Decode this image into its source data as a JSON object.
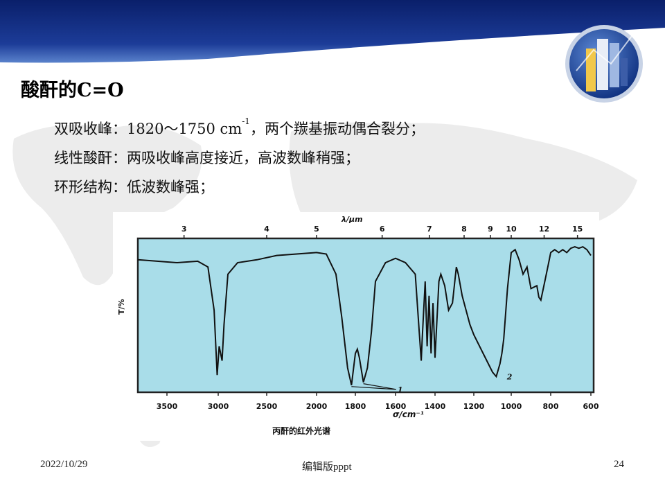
{
  "slide": {
    "title": "酸酐的C=O",
    "bullets": [
      {
        "pre": "双吸收峰：1820～1750 cm",
        "sup": "-1",
        "post": "，两个羰基振动偶合裂分；"
      },
      {
        "text": "线性酸酐：两吸收峰高度接近，高波数峰稍强；"
      },
      {
        "text": "环形结构：低波数峰强；"
      }
    ]
  },
  "chart_data": {
    "type": "line",
    "title": "丙酐的红外光谱",
    "top_axis_label": "λ/μm",
    "top_axis_ticks": [
      "3",
      "4",
      "5",
      "6",
      "7",
      "8",
      "9",
      "10",
      "12",
      "15"
    ],
    "xlabel": "σ/cm⁻¹",
    "x_ticks": [
      "3500",
      "3000",
      "2500",
      "2000",
      "1800",
      "1600",
      "1400",
      "1200",
      "1000",
      "800",
      "600"
    ],
    "ylabel": "T/%",
    "annotations": [
      "1",
      "2"
    ],
    "series": [
      {
        "x": [
          3800,
          3600,
          3400,
          3200,
          3100,
          3040,
          3010,
          2990,
          2960,
          2940,
          2900,
          2800,
          2600,
          2400,
          2200,
          2000,
          1950,
          1900,
          1870,
          1840,
          1820,
          1800,
          1790,
          1780,
          1760,
          1740,
          1720,
          1700,
          1650,
          1600,
          1550,
          1500,
          1480,
          1470,
          1465,
          1450,
          1440,
          1430,
          1420,
          1410,
          1400,
          1380,
          1370,
          1350,
          1330,
          1310,
          1290,
          1280,
          1260,
          1240,
          1220,
          1200,
          1150,
          1100,
          1080,
          1060,
          1050,
          1040,
          1020,
          1000,
          980,
          960,
          940,
          920,
          900,
          870,
          860,
          850,
          830,
          810,
          800,
          790,
          780,
          760,
          740,
          720,
          700,
          680,
          660,
          640,
          620,
          600
        ],
        "y": [
          90,
          89,
          88,
          89,
          85,
          55,
          10,
          30,
          20,
          45,
          80,
          88,
          90,
          93,
          94,
          95,
          94,
          80,
          50,
          15,
          3,
          25,
          28,
          22,
          5,
          15,
          40,
          75,
          88,
          91,
          88,
          80,
          40,
          20,
          35,
          75,
          30,
          65,
          25,
          60,
          22,
          75,
          80,
          72,
          55,
          60,
          85,
          80,
          65,
          55,
          45,
          38,
          25,
          12,
          9,
          18,
          25,
          35,
          70,
          95,
          97,
          90,
          80,
          85,
          70,
          72,
          64,
          62,
          75,
          88,
          95,
          96,
          97,
          95,
          97,
          95,
          98,
          99,
          98,
          99,
          97,
          93
        ]
      }
    ],
    "xlim": [
      3800,
      600
    ],
    "ylim": [
      0,
      100
    ],
    "grid": false
  },
  "footer": {
    "date": "2022/10/29",
    "center": "编辑版pppt",
    "page": "24"
  },
  "colors": {
    "header_dark": "#0a1f6a",
    "header_light": "#4b73c4",
    "plot_bg": "#a9dde9",
    "trace": "#111111"
  }
}
